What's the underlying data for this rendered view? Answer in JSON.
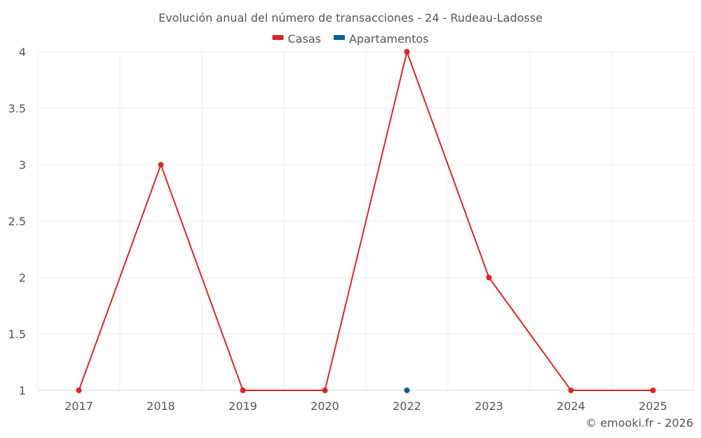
{
  "chart_data": {
    "type": "line",
    "title": "Evolución anual del número de transacciones - 24 - Rudeau-Ladosse",
    "categories": [
      "2017",
      "2018",
      "2019",
      "2020",
      "2022",
      "2023",
      "2024",
      "2025"
    ],
    "series": [
      {
        "name": "Casas",
        "color": "#d62728",
        "values": [
          1,
          3,
          1,
          1,
          4,
          2,
          1,
          1
        ]
      },
      {
        "name": "Apartamentos",
        "color": "#0b5f94",
        "values": [
          null,
          null,
          null,
          null,
          1,
          null,
          null,
          null
        ]
      }
    ],
    "ylim": [
      1,
      4
    ],
    "yticks": [
      1,
      1.5,
      2,
      2.5,
      3,
      3.5,
      4
    ],
    "grid": true,
    "legend_position": "top-center",
    "xlabel": "",
    "ylabel": ""
  },
  "credit": "© emooki.fr - 2026"
}
